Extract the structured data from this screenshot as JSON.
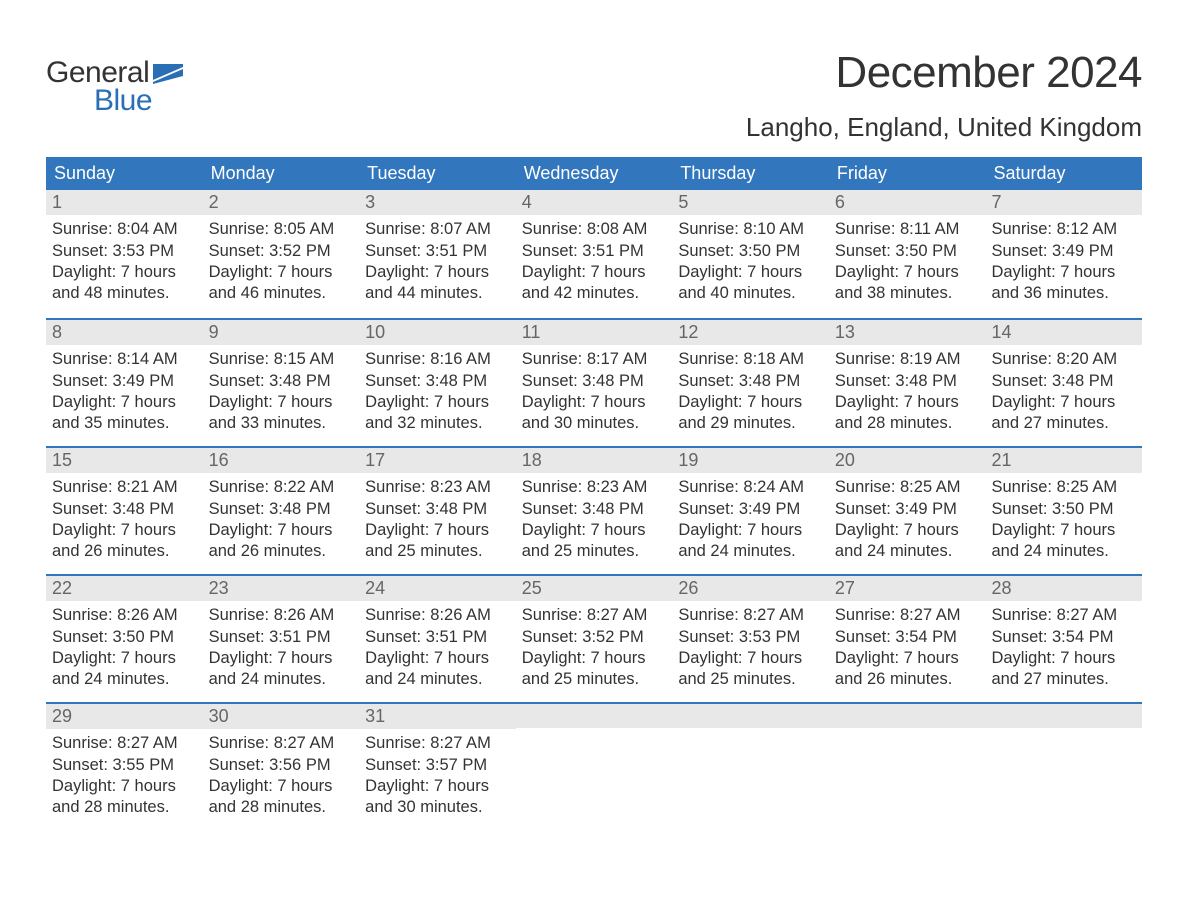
{
  "logo": {
    "word1": "General",
    "word2": "Blue",
    "flag_color": "#2a6fb5"
  },
  "title": "December 2024",
  "location": "Langho, England, United Kingdom",
  "colors": {
    "header_bg": "#3277bd",
    "header_text": "#ffffff",
    "daynum_bg": "#e8e8e8",
    "daynum_text": "#666666",
    "body_text": "#333333",
    "week_border": "#3277bd",
    "background": "#ffffff",
    "logo_blue": "#2a6fb5"
  },
  "fonts": {
    "title_size_pt": 33,
    "location_size_pt": 20,
    "weekday_size_pt": 14,
    "daynum_size_pt": 14,
    "body_size_pt": 12
  },
  "weekdays": [
    "Sunday",
    "Monday",
    "Tuesday",
    "Wednesday",
    "Thursday",
    "Friday",
    "Saturday"
  ],
  "weeks": [
    [
      {
        "n": "1",
        "sunrise": "8:04 AM",
        "sunset": "3:53 PM",
        "daylight": "7 hours and 48 minutes."
      },
      {
        "n": "2",
        "sunrise": "8:05 AM",
        "sunset": "3:52 PM",
        "daylight": "7 hours and 46 minutes."
      },
      {
        "n": "3",
        "sunrise": "8:07 AM",
        "sunset": "3:51 PM",
        "daylight": "7 hours and 44 minutes."
      },
      {
        "n": "4",
        "sunrise": "8:08 AM",
        "sunset": "3:51 PM",
        "daylight": "7 hours and 42 minutes."
      },
      {
        "n": "5",
        "sunrise": "8:10 AM",
        "sunset": "3:50 PM",
        "daylight": "7 hours and 40 minutes."
      },
      {
        "n": "6",
        "sunrise": "8:11 AM",
        "sunset": "3:50 PM",
        "daylight": "7 hours and 38 minutes."
      },
      {
        "n": "7",
        "sunrise": "8:12 AM",
        "sunset": "3:49 PM",
        "daylight": "7 hours and 36 minutes."
      }
    ],
    [
      {
        "n": "8",
        "sunrise": "8:14 AM",
        "sunset": "3:49 PM",
        "daylight": "7 hours and 35 minutes."
      },
      {
        "n": "9",
        "sunrise": "8:15 AM",
        "sunset": "3:48 PM",
        "daylight": "7 hours and 33 minutes."
      },
      {
        "n": "10",
        "sunrise": "8:16 AM",
        "sunset": "3:48 PM",
        "daylight": "7 hours and 32 minutes."
      },
      {
        "n": "11",
        "sunrise": "8:17 AM",
        "sunset": "3:48 PM",
        "daylight": "7 hours and 30 minutes."
      },
      {
        "n": "12",
        "sunrise": "8:18 AM",
        "sunset": "3:48 PM",
        "daylight": "7 hours and 29 minutes."
      },
      {
        "n": "13",
        "sunrise": "8:19 AM",
        "sunset": "3:48 PM",
        "daylight": "7 hours and 28 minutes."
      },
      {
        "n": "14",
        "sunrise": "8:20 AM",
        "sunset": "3:48 PM",
        "daylight": "7 hours and 27 minutes."
      }
    ],
    [
      {
        "n": "15",
        "sunrise": "8:21 AM",
        "sunset": "3:48 PM",
        "daylight": "7 hours and 26 minutes."
      },
      {
        "n": "16",
        "sunrise": "8:22 AM",
        "sunset": "3:48 PM",
        "daylight": "7 hours and 26 minutes."
      },
      {
        "n": "17",
        "sunrise": "8:23 AM",
        "sunset": "3:48 PM",
        "daylight": "7 hours and 25 minutes."
      },
      {
        "n": "18",
        "sunrise": "8:23 AM",
        "sunset": "3:48 PM",
        "daylight": "7 hours and 25 minutes."
      },
      {
        "n": "19",
        "sunrise": "8:24 AM",
        "sunset": "3:49 PM",
        "daylight": "7 hours and 24 minutes."
      },
      {
        "n": "20",
        "sunrise": "8:25 AM",
        "sunset": "3:49 PM",
        "daylight": "7 hours and 24 minutes."
      },
      {
        "n": "21",
        "sunrise": "8:25 AM",
        "sunset": "3:50 PM",
        "daylight": "7 hours and 24 minutes."
      }
    ],
    [
      {
        "n": "22",
        "sunrise": "8:26 AM",
        "sunset": "3:50 PM",
        "daylight": "7 hours and 24 minutes."
      },
      {
        "n": "23",
        "sunrise": "8:26 AM",
        "sunset": "3:51 PM",
        "daylight": "7 hours and 24 minutes."
      },
      {
        "n": "24",
        "sunrise": "8:26 AM",
        "sunset": "3:51 PM",
        "daylight": "7 hours and 24 minutes."
      },
      {
        "n": "25",
        "sunrise": "8:27 AM",
        "sunset": "3:52 PM",
        "daylight": "7 hours and 25 minutes."
      },
      {
        "n": "26",
        "sunrise": "8:27 AM",
        "sunset": "3:53 PM",
        "daylight": "7 hours and 25 minutes."
      },
      {
        "n": "27",
        "sunrise": "8:27 AM",
        "sunset": "3:54 PM",
        "daylight": "7 hours and 26 minutes."
      },
      {
        "n": "28",
        "sunrise": "8:27 AM",
        "sunset": "3:54 PM",
        "daylight": "7 hours and 27 minutes."
      }
    ],
    [
      {
        "n": "29",
        "sunrise": "8:27 AM",
        "sunset": "3:55 PM",
        "daylight": "7 hours and 28 minutes."
      },
      {
        "n": "30",
        "sunrise": "8:27 AM",
        "sunset": "3:56 PM",
        "daylight": "7 hours and 28 minutes."
      },
      {
        "n": "31",
        "sunrise": "8:27 AM",
        "sunset": "3:57 PM",
        "daylight": "7 hours and 30 minutes."
      },
      null,
      null,
      null,
      null
    ]
  ],
  "labels": {
    "sunrise_prefix": "Sunrise: ",
    "sunset_prefix": "Sunset: ",
    "daylight_prefix": "Daylight: "
  }
}
